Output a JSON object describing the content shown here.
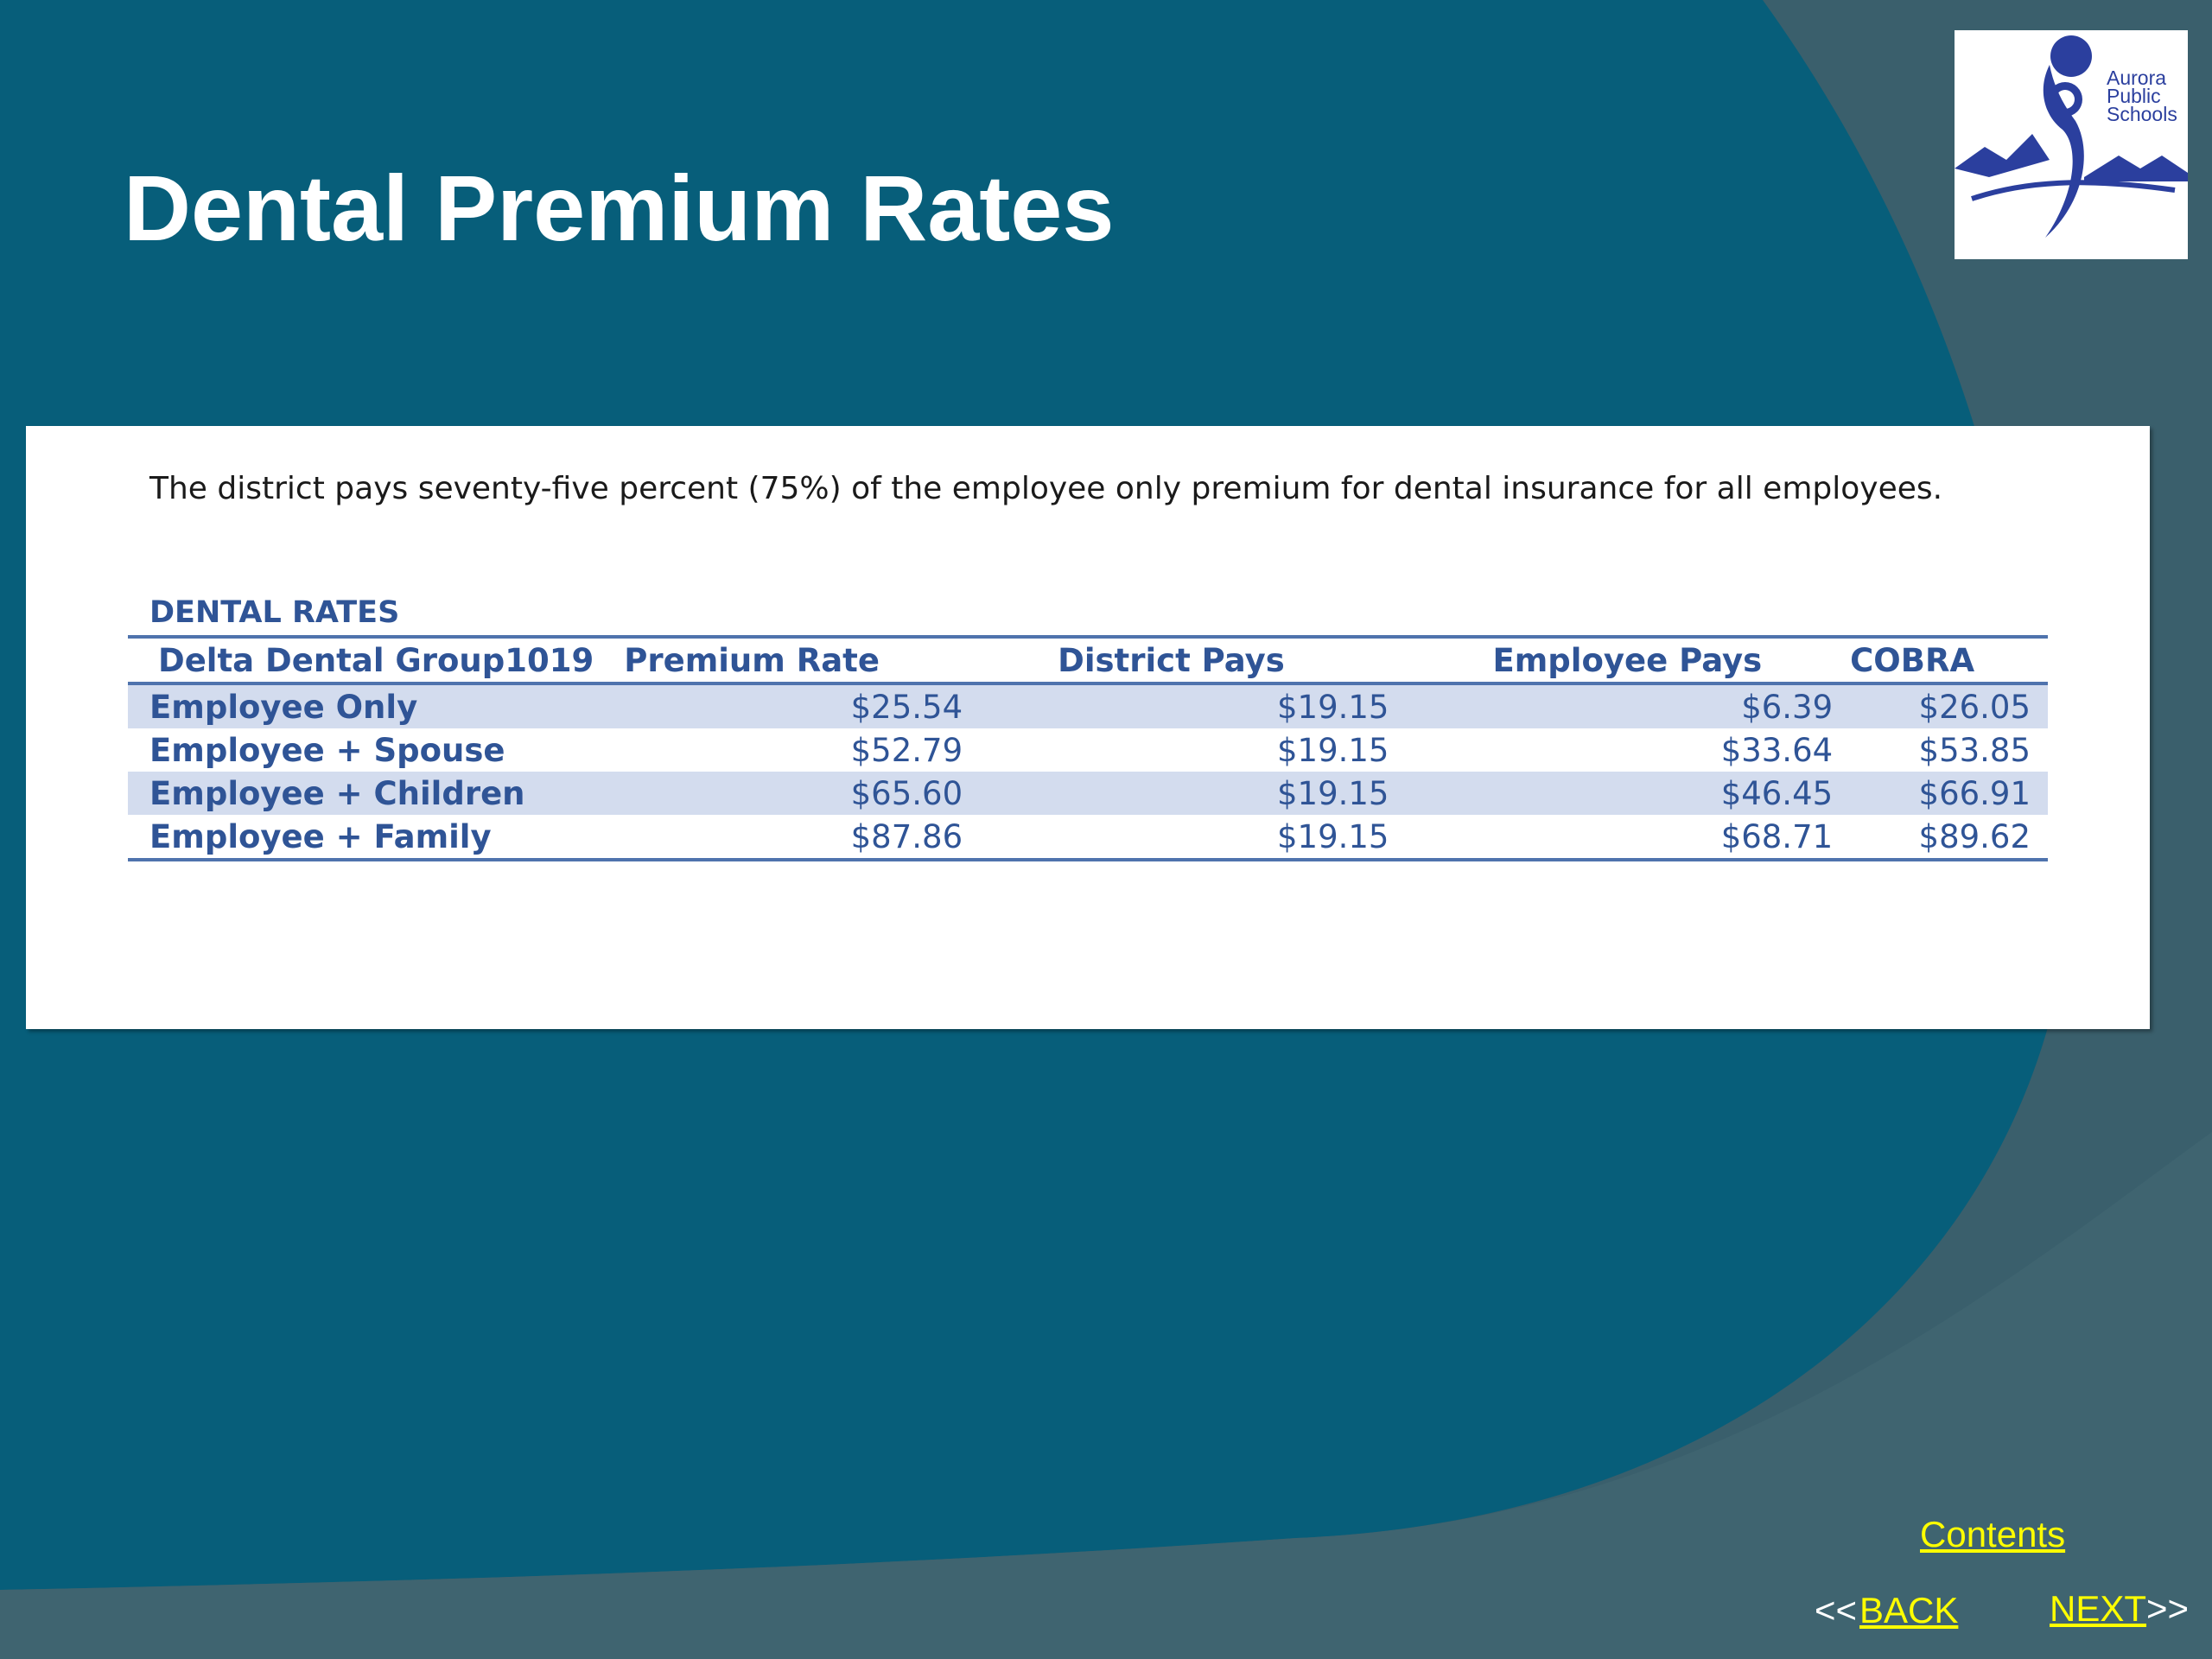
{
  "slide": {
    "title": "Dental Premium Rates",
    "colors": {
      "background_main": "#075e7a",
      "background_shade": "#3a5f6c",
      "title_text": "#ffffff",
      "table_text": "#2f5496",
      "band": "#d3dcee",
      "nav_link": "#ffff00"
    }
  },
  "logo": {
    "line1": "Aurora",
    "line2": "Public",
    "line3": "Schools",
    "icon": "aurora-public-schools-logo"
  },
  "content": {
    "intro": "The district pays seventy-five percent (75%) of the employee only premium for dental insurance for all employees.",
    "rates_heading": "DENTAL RATES",
    "table": {
      "headers": [
        "Delta Dental Group1019",
        "Premium Rate",
        "District Pays",
        "Employee Pays",
        "COBRA"
      ],
      "rows": [
        [
          "Employee Only",
          "$25.54",
          "$19.15",
          "$6.39",
          "$26.05"
        ],
        [
          "Employee + Spouse",
          "$52.79",
          "$19.15",
          "$33.64",
          "$53.85"
        ],
        [
          "Employee + Children",
          "$65.60",
          "$19.15",
          "$46.45",
          "$66.91"
        ],
        [
          "Employee + Family",
          "$87.86",
          "$19.15",
          "$68.71",
          "$89.62"
        ]
      ]
    }
  },
  "nav": {
    "contents": "Contents",
    "back_prefix": "<<",
    "back": "BACK",
    "next": "NEXT",
    "next_suffix": ">>"
  }
}
